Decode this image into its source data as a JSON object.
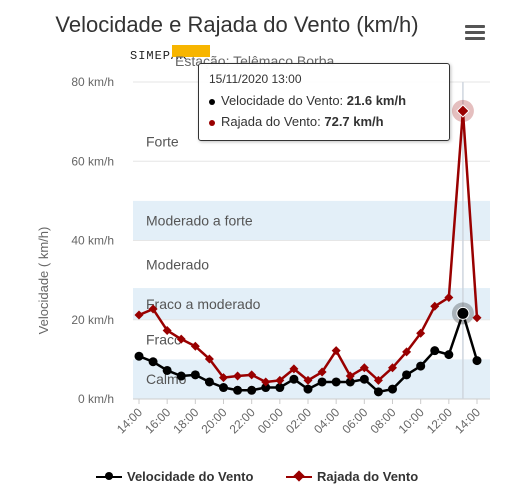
{
  "title": "Velocidade e Rajada do Vento (km/h)",
  "subtitle": "Estação: Telêmaco Borba",
  "logo_text": "SIMEPAR",
  "menu_icon": "hamburger-menu-icon",
  "tooltip": {
    "date": "15/11/2020 13:00",
    "line1_label": "Velocidade do Vento: ",
    "line1_value": "21.6 km/h",
    "line2_label": "Rajada do Vento: ",
    "line2_value": "72.7 km/h"
  },
  "colors": {
    "speed": "#000000",
    "gust": "#990000",
    "band": "#e3eff8"
  },
  "chart_data": {
    "type": "line",
    "ylabel": "Velocidade ( km/h)",
    "ylim": [
      0,
      80
    ],
    "y_ticks": [
      "0 km/h",
      "20 km/h",
      "40 km/h",
      "60 km/h",
      "80 km/h"
    ],
    "x_ticks": [
      "14:00",
      "16:00",
      "18:00",
      "20:00",
      "22:00",
      "00:00",
      "02:00",
      "04:00",
      "06:00",
      "08:00",
      "10:00",
      "12:00",
      "14:00"
    ],
    "bands": [
      {
        "label": "Calmo",
        "from": 0,
        "to": 10
      },
      {
        "label": "Fraco",
        "from": 10,
        "to": 20
      },
      {
        "label": "Fraco a moderado",
        "from": 20,
        "to": 28
      },
      {
        "label": "Moderado",
        "from": 28,
        "to": 40
      },
      {
        "label": "Moderado a forte",
        "from": 40,
        "to": 50
      },
      {
        "label": "Forte",
        "from": 50,
        "to": 80
      }
    ],
    "series": [
      {
        "name": "Velocidade do Vento",
        "values": [
          10.8,
          9.4,
          7.2,
          5.8,
          6.1,
          4.3,
          2.9,
          2.2,
          2.2,
          2.9,
          2.9,
          5.0,
          2.5,
          4.3,
          4.3,
          4.3,
          5.0,
          1.8,
          2.5,
          6.1,
          8.3,
          12.2,
          11.2,
          21.6,
          9.7
        ]
      },
      {
        "name": "Rajada do Vento",
        "values": [
          21.2,
          22.7,
          17.3,
          15.1,
          13.3,
          10.1,
          5.4,
          5.8,
          6.1,
          4.3,
          4.7,
          7.6,
          4.7,
          6.8,
          12.2,
          5.8,
          7.9,
          4.7,
          7.9,
          11.9,
          16.6,
          23.4,
          25.6,
          72.7,
          20.5
        ]
      }
    ],
    "highlight_index": 23,
    "legend_position": "bottom"
  }
}
